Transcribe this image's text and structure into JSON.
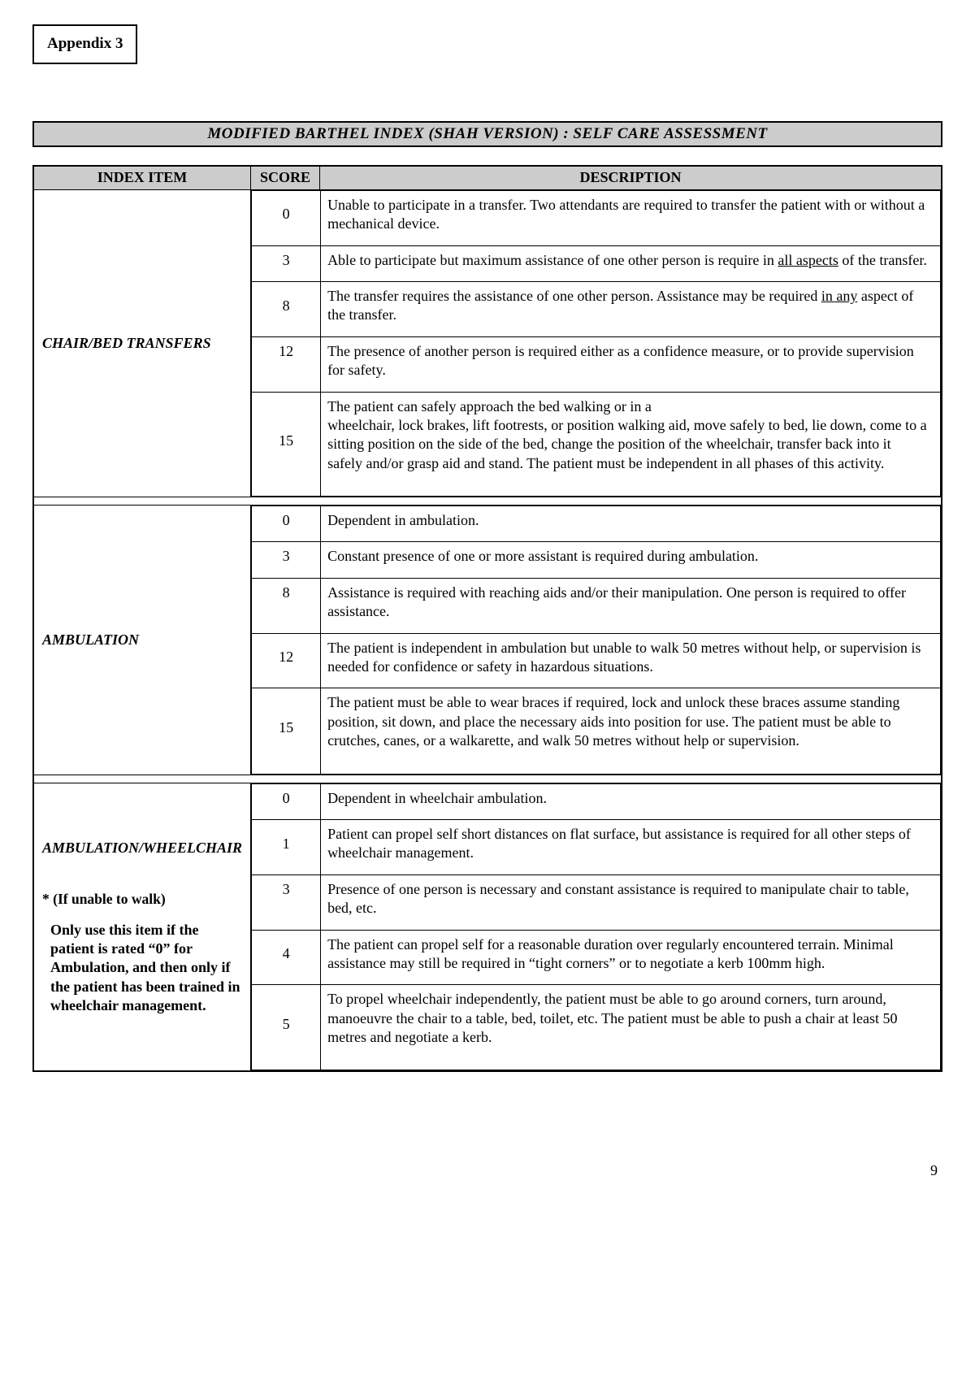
{
  "appendix_label": "Appendix 3",
  "title": "MODIFIED   BARTHEL INDEX (SHAH VERSION) :  SELF   CARE   ASSESSMENT",
  "headers": {
    "item": "INDEX ITEM",
    "score": "SCORE",
    "desc": "DESCRIPTION"
  },
  "page_number": "9",
  "sections": [
    {
      "item": "CHAIR/BED TRANSFERS",
      "rows": [
        {
          "score": "0",
          "desc_html": "Unable to participate in a transfer.  Two attendants are required to transfer the patient with or without a mechanical device."
        },
        {
          "score": "3",
          "desc_html": "Able to participate but maximum assistance of one other person is require in <span class='u'>all aspects</span> of the transfer."
        },
        {
          "score": "8",
          "desc_html": "The transfer requires the assistance of one other person.  Assistance may be required <span class='u'>in any</span> aspect of the transfer."
        },
        {
          "score": "12",
          "desc_html": "The presence of another person is required either as a confidence measure, or to provide supervision for safety."
        },
        {
          "score": "15",
          "desc_html": "The patient can safely approach the bed walking or in a<br>wheelchair, lock brakes, lift footrests, or position walking aid, move safely to bed, lie down, come to a sitting position on the side of the bed, change the position of the wheelchair, transfer back into it safely and/or grasp aid and stand.  The patient must be independent in all phases of this activity."
        }
      ]
    },
    {
      "item": "AMBULATION",
      "rows": [
        {
          "score": "0",
          "desc_html": "Dependent in ambulation."
        },
        {
          "score": "3",
          "desc_html": "Constant presence of one or more assistant is required during ambulation."
        },
        {
          "score": "8",
          "desc_html": "Assistance is required with reaching aids and/or their manipulation.  One person is required to offer assistance."
        },
        {
          "score": "12",
          "desc_html": "The patient is independent in ambulation but unable to walk 50 metres without help, or supervision is needed for confidence or safety in hazardous situations."
        },
        {
          "score": "15",
          "desc_html": "The patient must be able to wear braces if required, lock and unlock these braces assume standing position, sit down, and place the necessary aids into position for use.  The patient must be able to crutches, canes, or a walkarette, and walk 50 metres without help or supervision."
        }
      ]
    },
    {
      "item": "AMBULATION/WHEELCHAIR",
      "note_star": "* (If unable to walk)",
      "note_body": "Only use this item if the patient is rated “0” for Ambulation, and then only if the patient has been trained in wheelchair management.",
      "rows": [
        {
          "score": "0",
          "desc_html": "Dependent in wheelchair ambulation."
        },
        {
          "score": "1",
          "desc_html": "Patient can propel self short distances on flat surface, but assistance is required for all other steps of wheelchair management."
        },
        {
          "score": "3",
          "desc_html": "Presence of one person is necessary and constant assistance is required to manipulate chair to table, bed, etc."
        },
        {
          "score": "4",
          "desc_html": "The patient can propel self for a reasonable duration over regularly encountered terrain.  Minimal assistance may still be required in “tight corners” or to negotiate a kerb 100mm high."
        },
        {
          "score": "5",
          "desc_html": "To propel wheelchair independently, the patient must be able to go around corners, turn around, manoeuvre the chair to a table, bed, toilet, etc.  The patient must be able to push a chair at least 50 metres and negotiate a kerb."
        }
      ]
    }
  ]
}
